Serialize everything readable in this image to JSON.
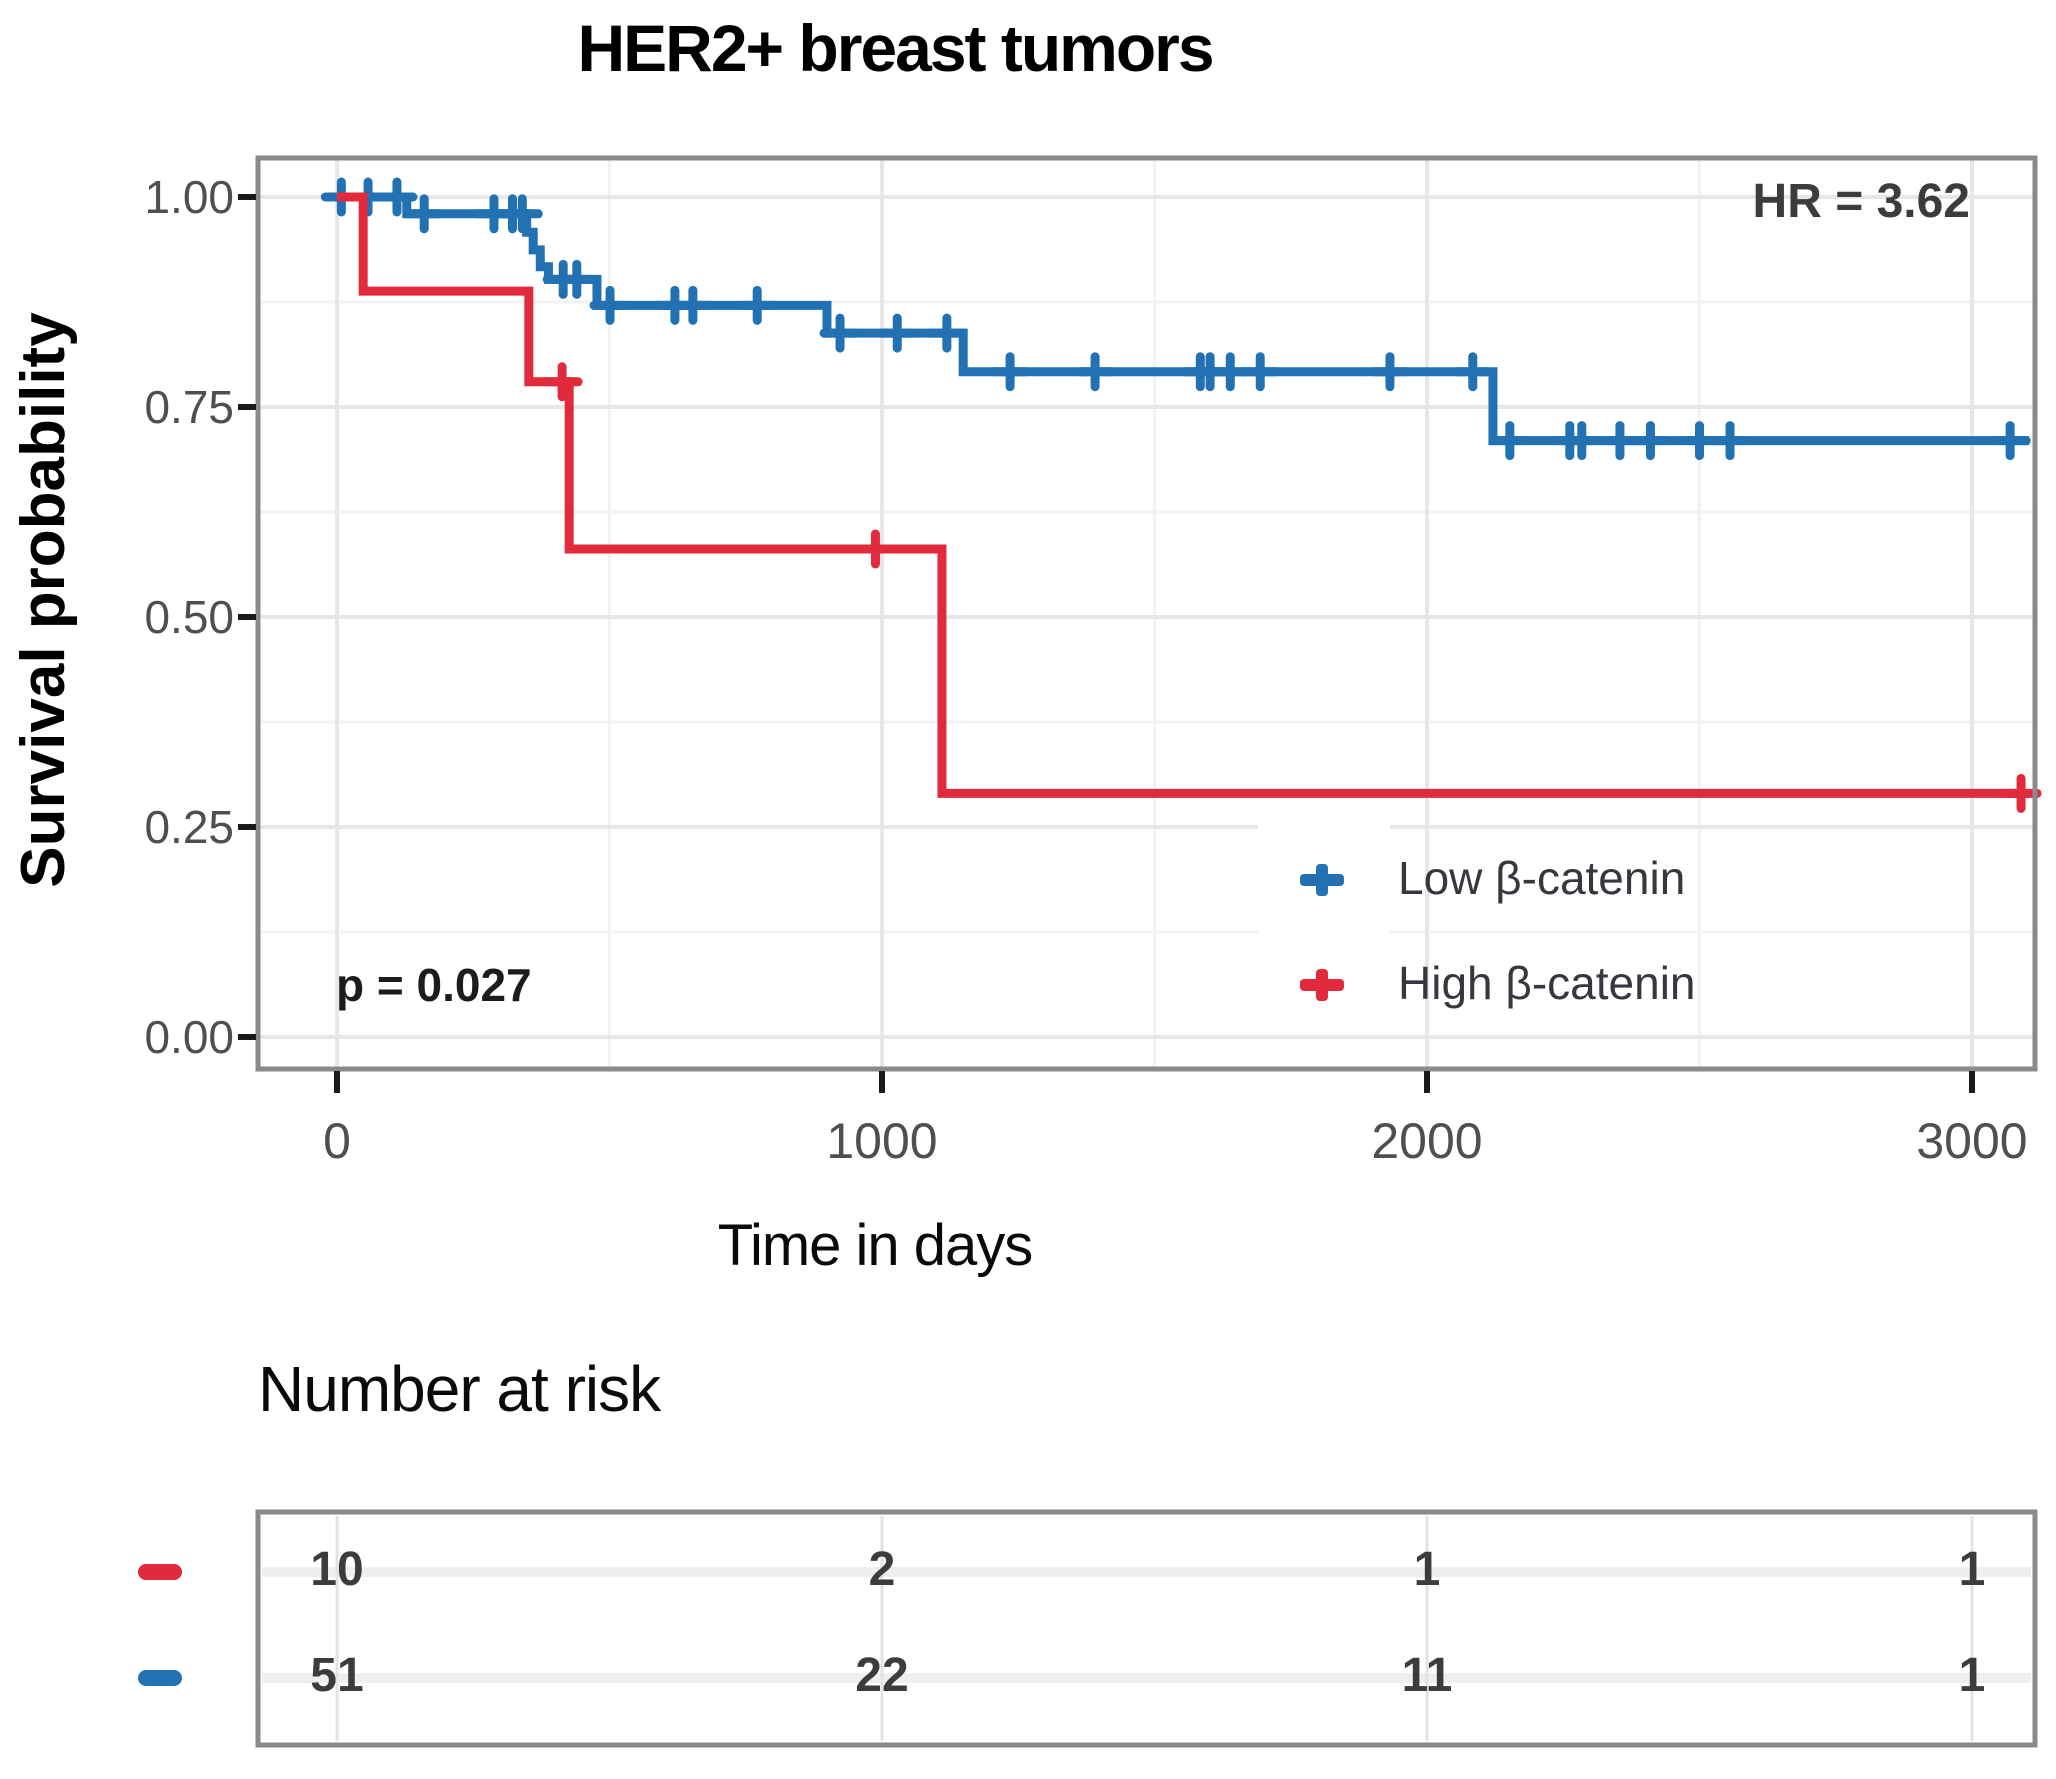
{
  "title": "HER2+ breast tumors",
  "annotations": {
    "hr": "HR = 3.62",
    "p_value": "p = 0.027"
  },
  "axes": {
    "x": {
      "label": "Time in days",
      "tick_labels": [
        "0",
        "1000",
        "2000",
        "3000"
      ],
      "tick_values": [
        0,
        1000,
        2000,
        3000
      ],
      "minor_values": [
        500,
        1500,
        2500
      ]
    },
    "y": {
      "label": "Survival probability",
      "tick_labels": [
        "1.00",
        "0.75",
        "0.50",
        "0.25",
        "0.00"
      ],
      "tick_values": [
        1.0,
        0.75,
        0.5,
        0.25,
        0.0
      ],
      "minor_values": [
        0.875,
        0.625,
        0.375,
        0.125
      ]
    }
  },
  "legend": {
    "items": [
      {
        "label": "Low β-catenin",
        "color": "#2271B3"
      },
      {
        "label": "High β-catenin",
        "color": "#E12A3C"
      }
    ]
  },
  "risk_table": {
    "heading": "Number at risk",
    "times": [
      0,
      1000,
      2000,
      3000
    ],
    "rows": [
      {
        "group": "High β-catenin",
        "color": "#E12A3C",
        "values": [
          "10",
          "2",
          "1",
          "1"
        ]
      },
      {
        "group": "Low β-catenin",
        "color": "#2271B3",
        "values": [
          "51",
          "22",
          "11",
          "1"
        ]
      }
    ]
  },
  "chart_data": {
    "type": "line",
    "subtype": "kaplan_meier_step",
    "title": "HER2+ breast tumors",
    "xlabel": "Time in days",
    "ylabel": "Survival probability",
    "xlim": [
      -150,
      3150
    ],
    "ylim": [
      0,
      1
    ],
    "grid": true,
    "legend_position": "inside-bottom-right",
    "annotations": {
      "hazard_ratio": 3.62,
      "p_value": 0.027
    },
    "series": [
      {
        "name": "Low β-catenin",
        "color": "#2271B3",
        "n_at_risk": [
          51,
          22,
          11,
          1
        ],
        "steps": [
          [
            0,
            1.0
          ],
          [
            128,
            0.98
          ],
          [
            348,
            0.958
          ],
          [
            360,
            0.937
          ],
          [
            373,
            0.917
          ],
          [
            388,
            0.902
          ],
          [
            477,
            0.871
          ],
          [
            899,
            0.838
          ],
          [
            1149,
            0.792
          ],
          [
            2121,
            0.71
          ],
          [
            3105,
            0.71
          ]
        ],
        "censors": [
          [
            8,
            1.0
          ],
          [
            57,
            1.0
          ],
          [
            110,
            1.0
          ],
          [
            160,
            0.98
          ],
          [
            288,
            0.98
          ],
          [
            322,
            0.98
          ],
          [
            340,
            0.98
          ],
          [
            415,
            0.902
          ],
          [
            440,
            0.902
          ],
          [
            501,
            0.871
          ],
          [
            620,
            0.871
          ],
          [
            653,
            0.871
          ],
          [
            771,
            0.871
          ],
          [
            923,
            0.838
          ],
          [
            1028,
            0.838
          ],
          [
            1119,
            0.838
          ],
          [
            1235,
            0.792
          ],
          [
            1391,
            0.792
          ],
          [
            1584,
            0.792
          ],
          [
            1602,
            0.792
          ],
          [
            1639,
            0.792
          ],
          [
            1694,
            0.792
          ],
          [
            1932,
            0.792
          ],
          [
            2084,
            0.792
          ],
          [
            2152,
            0.71
          ],
          [
            2262,
            0.71
          ],
          [
            2284,
            0.71
          ],
          [
            2354,
            0.71
          ],
          [
            2410,
            0.71
          ],
          [
            2500,
            0.71
          ],
          [
            2556,
            0.71
          ],
          [
            3070,
            0.71
          ]
        ]
      },
      {
        "name": "High β-catenin",
        "color": "#E12A3C",
        "n_at_risk": [
          10,
          2,
          1,
          1
        ],
        "steps": [
          [
            0,
            1.0
          ],
          [
            48,
            0.888
          ],
          [
            352,
            0.78
          ],
          [
            426,
            0.581
          ],
          [
            1110,
            0.29
          ],
          [
            3105,
            0.29
          ]
        ],
        "censors": [
          [
            413,
            0.78
          ],
          [
            988,
            0.581
          ],
          [
            3090,
            0.29
          ]
        ]
      }
    ]
  }
}
